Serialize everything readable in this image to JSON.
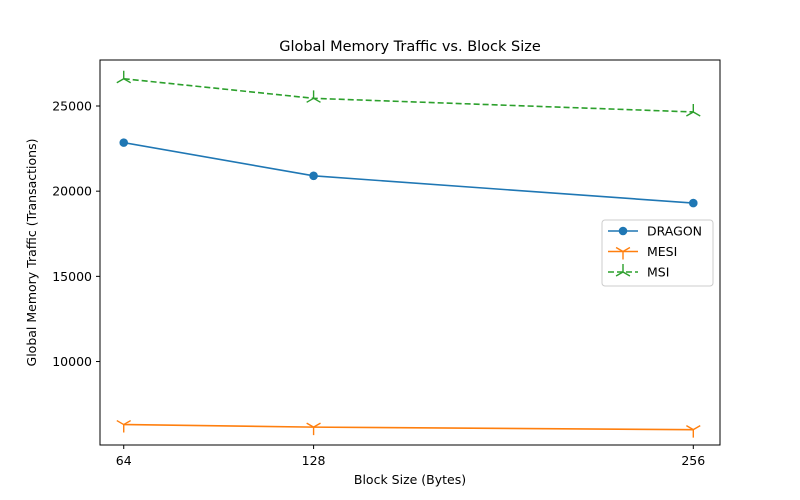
{
  "chart_data": {
    "type": "line",
    "title": "Global Memory Traffic vs. Block Size",
    "xlabel": "Block Size (Bytes)",
    "ylabel": "Global Memory Traffic (Transactions)",
    "x": [
      64,
      128,
      256
    ],
    "x_ticks": [
      "64",
      "128",
      "256"
    ],
    "xlim": [
      56,
      265
    ],
    "y_ticks": [
      10000,
      15000,
      20000,
      25000
    ],
    "ylim": [
      5100,
      27700
    ],
    "grid": false,
    "legend_position": "center-right",
    "series": [
      {
        "name": "DRAGON",
        "values": [
          22850,
          20900,
          19300
        ],
        "color": "#1f77b4",
        "linestyle": "solid",
        "marker": "circle"
      },
      {
        "name": "MESI",
        "values": [
          6300,
          6150,
          6000
        ],
        "color": "#ff7f0e",
        "linestyle": "solid",
        "marker": "tri_down"
      },
      {
        "name": "MSI",
        "values": [
          26600,
          25450,
          24650
        ],
        "color": "#2ca02c",
        "linestyle": "dashed",
        "marker": "tri_up"
      }
    ]
  }
}
